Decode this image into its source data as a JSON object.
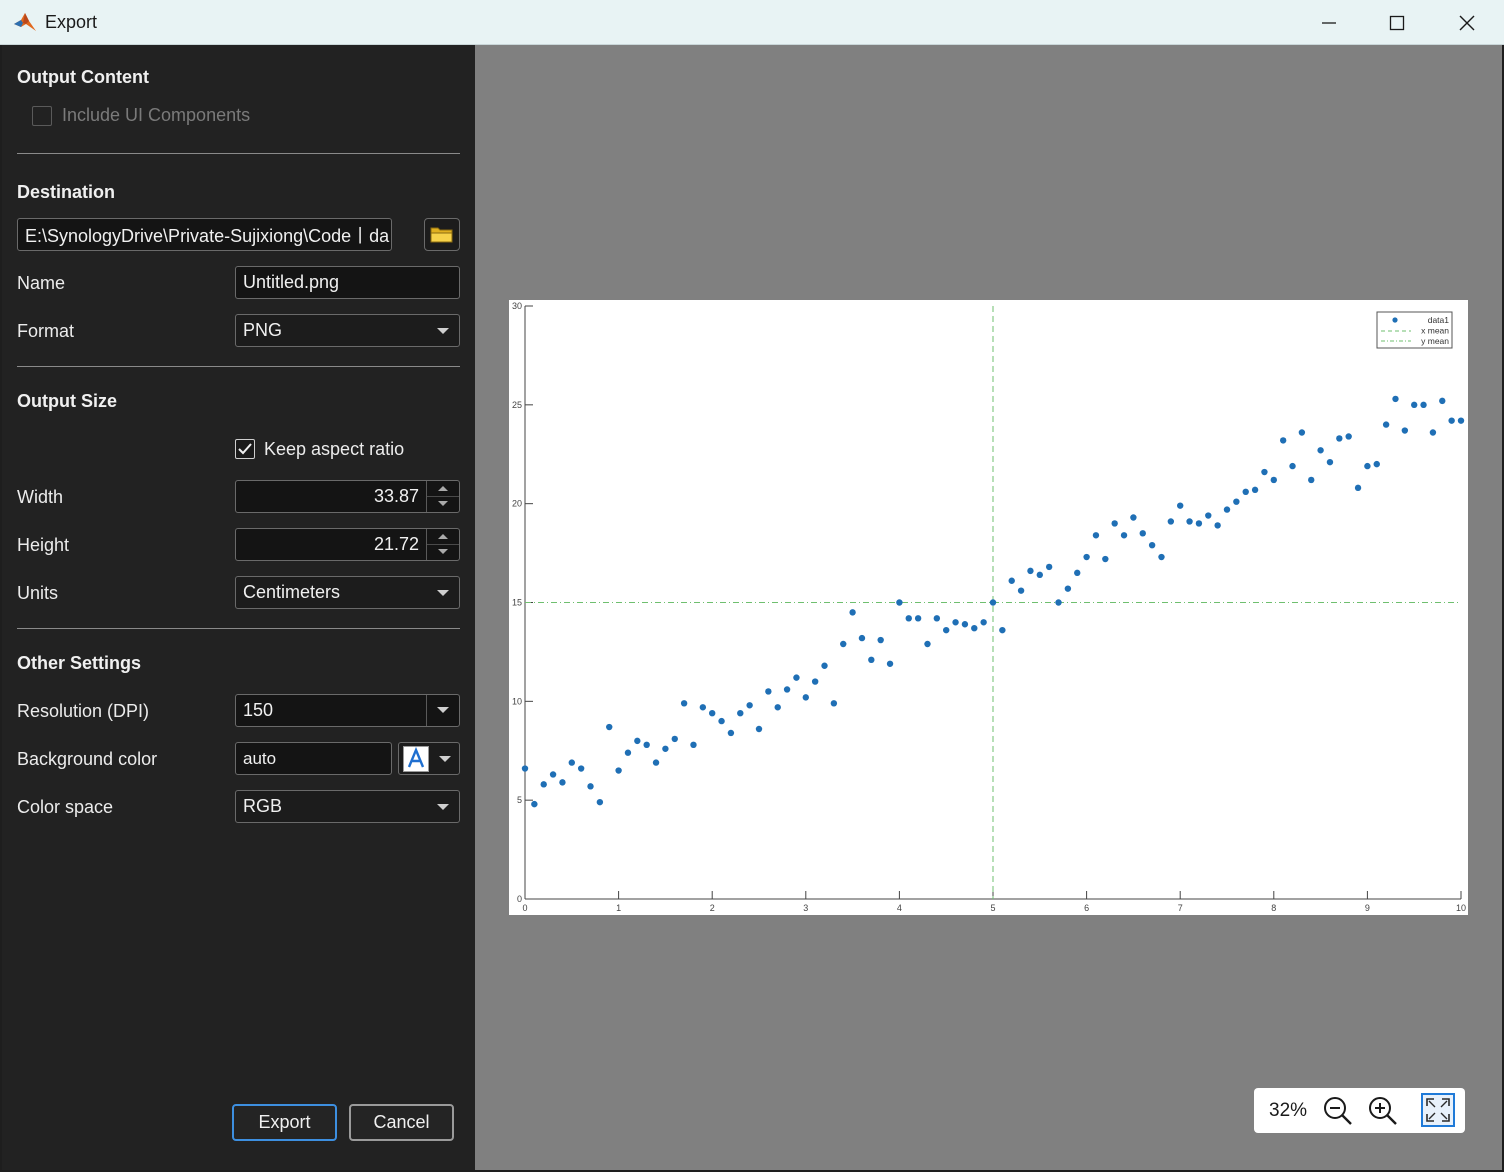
{
  "window": {
    "title": "Export",
    "accent": "#0f7ad8"
  },
  "output_content": {
    "heading": "Output Content",
    "include_ui_label": "Include UI Components",
    "include_ui_checked": false,
    "include_ui_enabled": false
  },
  "destination": {
    "heading": "Destination",
    "path": "E:\\SynologyDrive\\Private-Sujixiong\\Code丨da",
    "browse_icon": "folder-icon",
    "name_label": "Name",
    "name_value": "Untitled.png",
    "format_label": "Format",
    "format_value": "PNG"
  },
  "output_size": {
    "heading": "Output Size",
    "keep_aspect_label": "Keep aspect ratio",
    "keep_aspect_checked": true,
    "width_label": "Width",
    "width_value": "33.87",
    "height_label": "Height",
    "height_value": "21.72",
    "units_label": "Units",
    "units_value": "Centimeters"
  },
  "other_settings": {
    "heading": "Other Settings",
    "resolution_label": "Resolution (DPI)",
    "resolution_value": "150",
    "background_label": "Background color",
    "background_value": "auto",
    "colorspace_label": "Color space",
    "colorspace_value": "RGB"
  },
  "buttons": {
    "export_label": "Export",
    "cancel_label": "Cancel"
  },
  "zoom": {
    "level": "32%",
    "zoom_out_icon": "zoom-out-icon",
    "zoom_in_icon": "zoom-in-icon",
    "fit_icon": "fit-to-window-icon"
  },
  "chart_data": {
    "type": "scatter",
    "xlim": [
      0,
      10
    ],
    "ylim": [
      0,
      30
    ],
    "xticks": [
      "0",
      "1",
      "2",
      "3",
      "4",
      "5",
      "6",
      "7",
      "8",
      "9",
      "10"
    ],
    "yticks": [
      "0",
      "5",
      "10",
      "15",
      "20",
      "25",
      "30"
    ],
    "grid": false,
    "legend": {
      "placement": "top-right",
      "entries": [
        "data1",
        "x mean",
        "y mean"
      ]
    },
    "marker_color": "#1f6fb5",
    "mean_line_color": "#6fbf6f",
    "x_mean": 5,
    "y_mean": 15,
    "series": [
      {
        "name": "data1",
        "x": [
          0,
          0.1,
          0.2,
          0.3,
          0.4,
          0.5,
          0.6,
          0.7,
          0.8,
          0.9,
          1.0,
          1.1,
          1.2,
          1.3,
          1.4,
          1.5,
          1.6,
          1.7,
          1.8,
          1.9,
          2.0,
          2.1,
          2.2,
          2.3,
          2.4,
          2.5,
          2.6,
          2.7,
          2.8,
          2.9,
          3.0,
          3.1,
          3.2,
          3.3,
          3.4,
          3.5,
          3.6,
          3.7,
          3.8,
          3.9,
          4.0,
          4.1,
          4.2,
          4.3,
          4.4,
          4.5,
          4.6,
          4.7,
          4.8,
          4.9,
          5.0,
          5.1,
          5.2,
          5.3,
          5.4,
          5.5,
          5.6,
          5.7,
          5.8,
          5.9,
          6.0,
          6.1,
          6.2,
          6.3,
          6.4,
          6.5,
          6.6,
          6.7,
          6.8,
          6.9,
          7.0,
          7.1,
          7.2,
          7.3,
          7.4,
          7.5,
          7.6,
          7.7,
          7.8,
          7.9,
          8.0,
          8.1,
          8.2,
          8.3,
          8.4,
          8.5,
          8.6,
          8.7,
          8.8,
          8.9,
          9.0,
          9.1,
          9.2,
          9.3,
          9.4,
          9.5,
          9.6,
          9.7,
          9.8,
          9.9,
          10.0
        ],
        "y": [
          6.6,
          4.8,
          5.8,
          6.3,
          5.9,
          6.9,
          6.6,
          5.7,
          4.9,
          8.7,
          6.5,
          7.4,
          8.0,
          7.8,
          6.9,
          7.6,
          8.1,
          9.9,
          7.8,
          9.7,
          9.4,
          9.0,
          8.4,
          9.4,
          9.8,
          8.6,
          10.5,
          9.7,
          10.6,
          11.2,
          10.2,
          11.0,
          11.8,
          9.9,
          12.9,
          14.5,
          13.2,
          12.1,
          13.1,
          11.9,
          15.0,
          14.2,
          14.2,
          12.9,
          14.2,
          13.6,
          14.0,
          13.9,
          13.7,
          14.0,
          15.0,
          13.6,
          16.1,
          15.6,
          16.6,
          16.4,
          16.8,
          15.0,
          15.7,
          16.5,
          17.3,
          18.4,
          17.2,
          19.0,
          18.4,
          19.3,
          18.5,
          17.9,
          17.3,
          19.1,
          19.9,
          19.1,
          19.0,
          19.4,
          18.9,
          19.7,
          20.1,
          20.6,
          20.7,
          21.6,
          21.2,
          23.2,
          21.9,
          23.6,
          21.2,
          22.7,
          22.1,
          23.3,
          23.4,
          20.8,
          21.9,
          22.0,
          24.0,
          25.3,
          23.7,
          25.0,
          25.0,
          23.6,
          25.2,
          24.2,
          24.2
        ]
      }
    ]
  }
}
